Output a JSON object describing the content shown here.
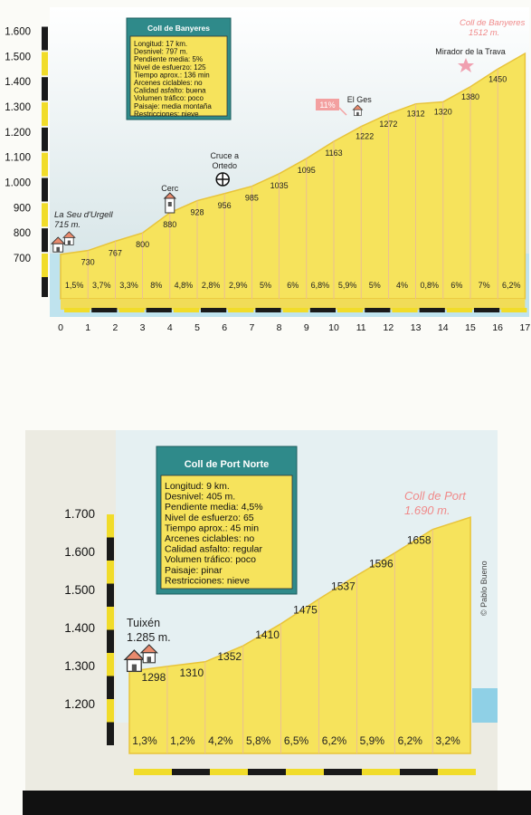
{
  "chart_data": [
    {
      "type": "area",
      "title": "Coll de Banyeres",
      "y_tick_labels": [
        "1.600",
        "1.500",
        "1.400",
        "1.300",
        "1.200",
        "1.100",
        "1.000",
        "900",
        "800",
        "700"
      ],
      "ylim": [
        640,
        1600
      ],
      "x_ticks": [
        "0",
        "1",
        "2",
        "3",
        "4",
        "5",
        "6",
        "7",
        "8",
        "9",
        "10",
        "11",
        "12",
        "13",
        "14",
        "15",
        "16",
        "17"
      ],
      "xlim": [
        0,
        17
      ],
      "elevations": [
        715,
        730,
        767,
        800,
        880,
        928,
        956,
        985,
        1035,
        1095,
        1163,
        1222,
        1272,
        1312,
        1320,
        1380,
        1450,
        1512
      ],
      "labels_km": [
        1,
        2,
        3,
        4,
        5,
        6,
        7,
        8,
        9,
        10,
        11,
        12,
        13,
        14,
        15,
        16
      ],
      "elevation_labels": [
        "730",
        "767",
        "800",
        "880",
        "928",
        "956",
        "985",
        "1035",
        "1095",
        "1163",
        "1222",
        "1272",
        "1312",
        "1320",
        "1380",
        "1450"
      ],
      "gradients": [
        "1,5%",
        "3,7%",
        "3,3%",
        "8%",
        "4,8%",
        "2,8%",
        "2,9%",
        "5%",
        "6%",
        "6,8%",
        "5,9%",
        "5%",
        "4%",
        "0,8%",
        "6%",
        "7%",
        "6,2%"
      ],
      "start": {
        "name": "La Seu d'Urgell",
        "elevation": "715 m."
      },
      "end": {
        "name": "Coll de Banyeres",
        "elevation": "1512 m."
      },
      "places": [
        "Cerc",
        "Cruce a",
        "Ortedo",
        "El Ges",
        "Mirador de la Trava"
      ],
      "max_gradient_badge": "11%",
      "info_box": {
        "title": "Coll de Banyeres",
        "lines": [
          "Longitud: 17 km.",
          "Desnivel: 797 m.",
          "Pendiente media: 5%",
          "Nivel de esfuerzo: 125",
          "Tiempo aprox.: 136 min",
          "Arcenes ciclables: no",
          "Calidad asfalto: buena",
          "Volumen tráfico: poco",
          "Paisaje: media montaña",
          "Restricciones: nieve"
        ]
      }
    },
    {
      "type": "area",
      "title": "Coll de Port Norte",
      "y_tick_labels": [
        "1.700",
        "1.600",
        "1.500",
        "1.400",
        "1.300",
        "1.200"
      ],
      "ylim": [
        1100,
        1700
      ],
      "xlim": [
        0,
        9
      ],
      "elevations": [
        1285,
        1298,
        1310,
        1352,
        1410,
        1475,
        1537,
        1596,
        1658,
        1690
      ],
      "elevation_labels": [
        "1298",
        "1310",
        "1352",
        "1410",
        "1475",
        "1537",
        "1596",
        "1658"
      ],
      "gradients": [
        "1,3%",
        "1,2%",
        "4,2%",
        "5,8%",
        "6,5%",
        "6,2%",
        "5,9%",
        "6,2%",
        "3,2%"
      ],
      "start": {
        "name": "Tuixén",
        "elevation": "1.285 m."
      },
      "end": {
        "name": "Coll de Port",
        "elevation": "1.690 m."
      },
      "credit": "© Pablo Bueno",
      "info_box": {
        "title": "Coll de Port Norte",
        "lines": [
          "Longitud: 9 km.",
          "Desnivel: 405 m.",
          "Pendiente media: 4,5%",
          "Nivel de esfuerzo: 65",
          "Tiempo aprox.: 45 min",
          "Arcenes ciclables: no",
          "Calidad asfalto: regular",
          "Volumen tráfico: poco",
          "Paisaje: pinar",
          "Restricciones: nieve"
        ]
      }
    }
  ],
  "colors": {
    "fill": "#f6e35c",
    "fill_edge": "#e8c43a",
    "sky": "#dfe9ea",
    "box_bg": "#2f8a8a",
    "box_inner": "#f6e35c",
    "accent": "#f08a8a",
    "dark": "#1a1a1a"
  }
}
